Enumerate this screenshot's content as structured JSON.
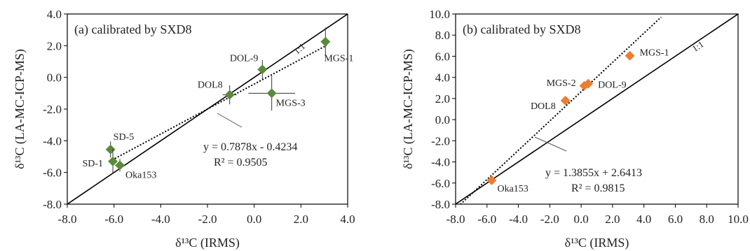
{
  "figure": {
    "colors": {
      "panel_a_marker": "#5a8a3a",
      "panel_b_marker": "#ed7d31",
      "line": "#000000",
      "errorbar": "#333333"
    }
  },
  "chart_data": [
    {
      "type": "scatter",
      "panel_label": "(a) calibrated by SXD8",
      "xlabel": "δ¹³C (IRMS)",
      "ylabel": "δ¹³C (LA-MC-ICP-MS)",
      "xlim": [
        -8.0,
        4.0
      ],
      "ylim": [
        -8.0,
        4.0
      ],
      "x_ticks": [
        "-8.0",
        "-6.0",
        "-4.0",
        "-2.0",
        "0.0",
        "2.0",
        "4.0"
      ],
      "y_ticks": [
        "-8.0",
        "-6.0",
        "-4.0",
        "-2.0",
        "0.0",
        "2.0",
        "4.0"
      ],
      "grid": false,
      "reference_line_label": "1:1",
      "fit": {
        "slope": 0.7878,
        "intercept": -0.4234,
        "x_range": [
          -6.2,
          3.1
        ],
        "equation": "y = 0.7878x - 0.4234",
        "r2": "R² = 0.9505"
      },
      "points": [
        {
          "name": "SD-5",
          "x": -6.15,
          "y": -4.55,
          "xerr": 0.15,
          "yerr": 0.5
        },
        {
          "name": "SD-1",
          "x": -6.05,
          "y": -5.3,
          "xerr": 0.15,
          "yerr": 0.8
        },
        {
          "name": "Oka153",
          "x": -5.75,
          "y": -5.55,
          "xerr": 0.2,
          "yerr": 0.4
        },
        {
          "name": "DOL8",
          "x": -1.05,
          "y": -1.1,
          "xerr": 0.3,
          "yerr": 0.6
        },
        {
          "name": "DOL-9",
          "x": 0.35,
          "y": 0.5,
          "xerr": 0.2,
          "yerr": 0.6
        },
        {
          "name": "MGS-3",
          "x": 0.75,
          "y": -1.0,
          "xerr": 1.0,
          "yerr": 1.1
        },
        {
          "name": "MGS-1",
          "x": 3.05,
          "y": 2.25,
          "xerr": 0.2,
          "yerr": 0.9
        }
      ]
    },
    {
      "type": "scatter",
      "panel_label": "(b) calibrated by SXD8",
      "xlabel": "δ¹³C (IRMS)",
      "ylabel": "δ¹³C (LA-MC-ICP-MS)",
      "xlim": [
        -8.0,
        10.0
      ],
      "ylim": [
        -8.0,
        10.0
      ],
      "x_ticks": [
        "-8.0",
        "-6.0",
        "-4.0",
        "-2.0",
        "0.0",
        "2.0",
        "4.0",
        "6.0",
        "8.0",
        "10.0"
      ],
      "y_ticks": [
        "-8.0",
        "-6.0",
        "-4.0",
        "-2.0",
        "0.0",
        "2.0",
        "4.0",
        "6.0",
        "8.0",
        "10.0"
      ],
      "grid": false,
      "reference_line_label": "1:1",
      "fit": {
        "slope": 1.3855,
        "intercept": 2.6413,
        "x_range": [
          -7.7,
          5.1
        ],
        "equation": "y = 1.3855x + 2.6413",
        "r2": "R² = 0.9815"
      },
      "points": [
        {
          "name": "Oka153",
          "x": -5.7,
          "y": -5.75
        },
        {
          "name": "DOL8",
          "x": -1.0,
          "y": 1.8
        },
        {
          "name": "MGS-2",
          "x": 0.2,
          "y": 3.2
        },
        {
          "name": "DOL-9",
          "x": 0.45,
          "y": 3.4
        },
        {
          "name": "MGS-1",
          "x": 3.1,
          "y": 6.05
        }
      ]
    }
  ]
}
